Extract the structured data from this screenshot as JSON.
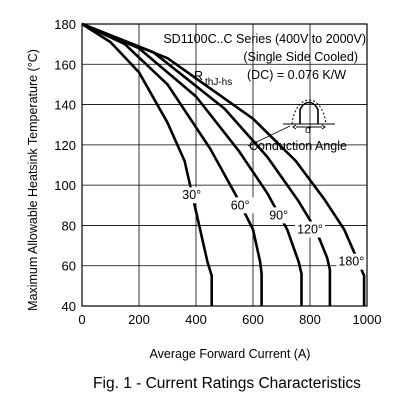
{
  "chart_data": {
    "type": "line",
    "title": "Fig. 1 - Current Ratings Characteristics",
    "xlabel": "Average Forward Current (A)",
    "ylabel": "Maximum Allowable Heatsink Temperature (°C)",
    "xlim": [
      0,
      1000
    ],
    "ylim": [
      40,
      180
    ],
    "xticks": [
      0,
      200,
      400,
      600,
      800,
      1000
    ],
    "yticks": [
      40,
      60,
      80,
      100,
      120,
      140,
      160,
      180
    ],
    "grid": true,
    "annotations": {
      "series_line1": "SD1100C..C Series (400V to 2000V)",
      "series_line2": "(Single Side Cooled)",
      "rth_main": "R",
      "rth_sub": "thJ-hs",
      "rth_value": "(DC) = 0.076 K/W",
      "conduction_angle": "Conduction Angle",
      "inset_symbol": "σ"
    },
    "series": [
      {
        "name": "30°",
        "x": [
          0,
          100,
          200,
          300,
          360,
          400,
          440,
          455,
          455
        ],
        "y": [
          180,
          171,
          156,
          131,
          112,
          87,
          62,
          55,
          40
        ]
      },
      {
        "name": "60°",
        "x": [
          0,
          150,
          300,
          450,
          540,
          600,
          625,
          630,
          630
        ],
        "y": [
          180,
          170,
          150,
          118,
          95,
          78,
          62,
          56,
          40
        ]
      },
      {
        "name": "90°",
        "x": [
          0,
          200,
          400,
          550,
          650,
          720,
          760,
          770,
          770
        ],
        "y": [
          180,
          168,
          144,
          117,
          96,
          78,
          62,
          56,
          40
        ]
      },
      {
        "name": "120°",
        "x": [
          0,
          250,
          500,
          650,
          760,
          820,
          860,
          870,
          870
        ],
        "y": [
          180,
          166,
          138,
          114,
          92,
          78,
          64,
          58,
          40
        ]
      },
      {
        "name": "180°",
        "x": [
          0,
          300,
          600,
          750,
          850,
          920,
          960,
          990,
          990
        ],
        "y": [
          180,
          163,
          133,
          112,
          93,
          78,
          65,
          55,
          40
        ]
      }
    ],
    "series_label_values": [
      {
        "name": "30°",
        "x": 385,
        "y": 93
      },
      {
        "name": "60°",
        "x": 555,
        "y": 88
      },
      {
        "name": "90°",
        "x": 690,
        "y": 83
      },
      {
        "name": "120°",
        "x": 800,
        "y": 76
      },
      {
        "name": "180°",
        "x": 945,
        "y": 60
      }
    ]
  }
}
